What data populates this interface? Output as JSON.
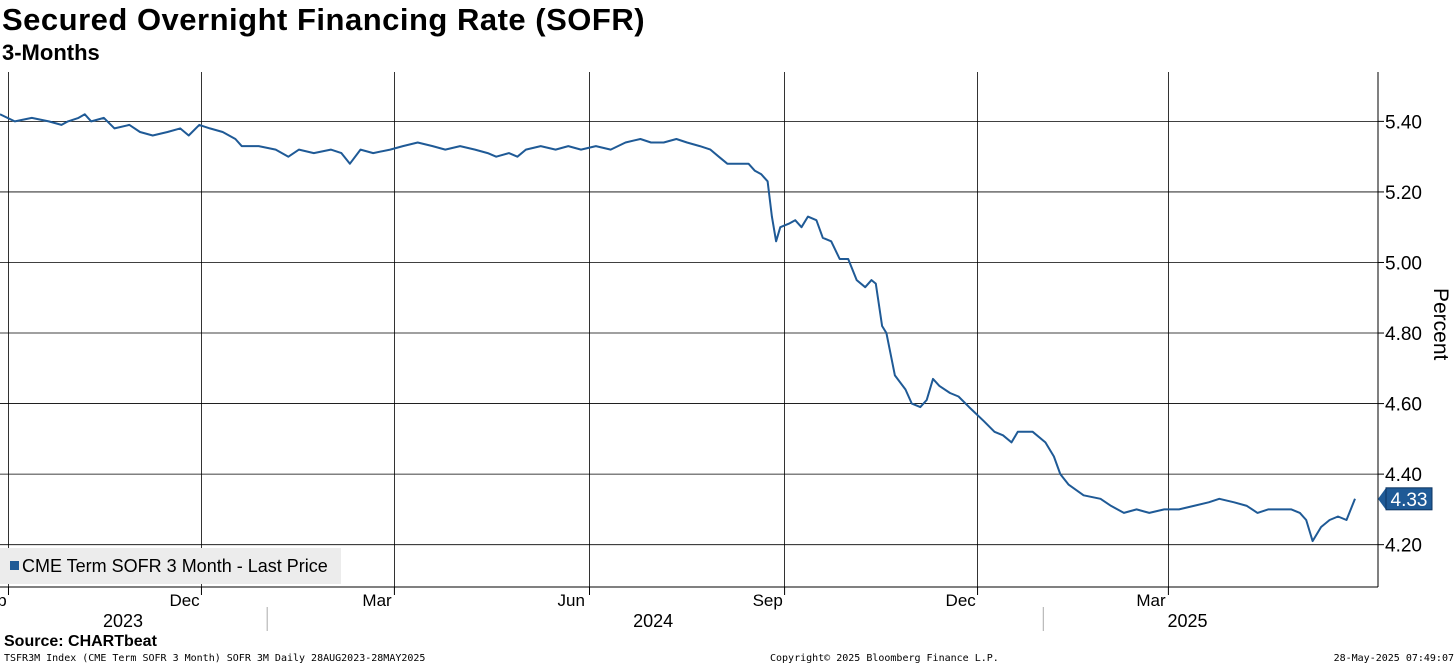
{
  "header": {
    "title": "Secured Overnight Financing Rate (SOFR)",
    "subtitle": "3-Months"
  },
  "footer": {
    "source": "Source: CHARTbeat",
    "index_info": "TSFR3M Index (CME Term SOFR 3 Month) SOFR 3M  Daily 28AUG2023-28MAY2025",
    "copyright": "Copyright© 2025 Bloomberg Finance L.P.",
    "timestamp": "28-May-2025 07:49:07"
  },
  "colors": {
    "line": "#1f5a96",
    "grid": "#000000",
    "last_badge_bg": "#1f5a96",
    "legend_bg": "#ececec"
  },
  "chart_data": {
    "type": "line",
    "title": "Secured Overnight Financing Rate (SOFR)",
    "subtitle": "3-Months",
    "ylabel": "Percent",
    "ylim": [
      4.08,
      5.54
    ],
    "y_ticks": [
      "5.40",
      "5.20",
      "5.00",
      "4.80",
      "4.60",
      "4.40",
      "4.20"
    ],
    "x_range": [
      "2023-08-28",
      "2025-05-28"
    ],
    "month_ticks": [
      {
        "label": "Sep",
        "date": "2023-09-01"
      },
      {
        "label": "Dec",
        "date": "2023-12-01"
      },
      {
        "label": "Mar",
        "date": "2024-03-01"
      },
      {
        "label": "Jun",
        "date": "2024-06-01"
      },
      {
        "label": "Sep",
        "date": "2024-09-01"
      },
      {
        "label": "Dec",
        "date": "2024-12-01"
      },
      {
        "label": "Mar",
        "date": "2025-03-01"
      }
    ],
    "year_labels": [
      {
        "label": "2023",
        "date": "2023-10-25"
      },
      {
        "label": "2024",
        "date": "2024-07-01"
      },
      {
        "label": "2025",
        "date": "2025-03-10"
      }
    ],
    "year_separators": [
      "2024-01-01",
      "2025-01-01"
    ],
    "grid": true,
    "legend": {
      "position": "bottom-left",
      "entries": [
        "CME Term SOFR 3 Month - Last Price"
      ]
    },
    "last_value_label": "4.33",
    "series": [
      {
        "name": "CME Term SOFR 3 Month - Last Price",
        "points": [
          [
            "2023-08-28",
            5.42
          ],
          [
            "2023-09-04",
            5.4
          ],
          [
            "2023-09-12",
            5.41
          ],
          [
            "2023-09-20",
            5.4
          ],
          [
            "2023-09-26",
            5.39
          ],
          [
            "2023-09-29",
            5.4
          ],
          [
            "2023-10-04",
            5.41
          ],
          [
            "2023-10-07",
            5.42
          ],
          [
            "2023-10-10",
            5.4
          ],
          [
            "2023-10-16",
            5.41
          ],
          [
            "2023-10-21",
            5.38
          ],
          [
            "2023-10-28",
            5.39
          ],
          [
            "2023-11-02",
            5.37
          ],
          [
            "2023-11-08",
            5.36
          ],
          [
            "2023-11-15",
            5.37
          ],
          [
            "2023-11-21",
            5.38
          ],
          [
            "2023-11-25",
            5.36
          ],
          [
            "2023-11-30",
            5.39
          ],
          [
            "2023-12-05",
            5.38
          ],
          [
            "2023-12-11",
            5.37
          ],
          [
            "2023-12-17",
            5.35
          ],
          [
            "2023-12-20",
            5.33
          ],
          [
            "2023-12-28",
            5.33
          ],
          [
            "2024-01-05",
            5.32
          ],
          [
            "2024-01-11",
            5.3
          ],
          [
            "2024-01-16",
            5.32
          ],
          [
            "2024-01-23",
            5.31
          ],
          [
            "2024-01-31",
            5.32
          ],
          [
            "2024-02-05",
            5.31
          ],
          [
            "2024-02-09",
            5.28
          ],
          [
            "2024-02-14",
            5.32
          ],
          [
            "2024-02-20",
            5.31
          ],
          [
            "2024-02-28",
            5.32
          ],
          [
            "2024-03-05",
            5.33
          ],
          [
            "2024-03-12",
            5.34
          ],
          [
            "2024-03-19",
            5.33
          ],
          [
            "2024-03-25",
            5.32
          ],
          [
            "2024-04-01",
            5.33
          ],
          [
            "2024-04-08",
            5.32
          ],
          [
            "2024-04-14",
            5.31
          ],
          [
            "2024-04-18",
            5.3
          ],
          [
            "2024-04-24",
            5.31
          ],
          [
            "2024-04-28",
            5.3
          ],
          [
            "2024-05-02",
            5.32
          ],
          [
            "2024-05-09",
            5.33
          ],
          [
            "2024-05-16",
            5.32
          ],
          [
            "2024-05-22",
            5.33
          ],
          [
            "2024-05-28",
            5.32
          ],
          [
            "2024-06-04",
            5.33
          ],
          [
            "2024-06-11",
            5.32
          ],
          [
            "2024-06-18",
            5.34
          ],
          [
            "2024-06-25",
            5.35
          ],
          [
            "2024-06-30",
            5.34
          ],
          [
            "2024-07-06",
            5.34
          ],
          [
            "2024-07-12",
            5.35
          ],
          [
            "2024-07-17",
            5.34
          ],
          [
            "2024-07-23",
            5.33
          ],
          [
            "2024-07-28",
            5.32
          ],
          [
            "2024-08-01",
            5.3
          ],
          [
            "2024-08-05",
            5.28
          ],
          [
            "2024-08-10",
            5.28
          ],
          [
            "2024-08-15",
            5.28
          ],
          [
            "2024-08-18",
            5.26
          ],
          [
            "2024-08-21",
            5.25
          ],
          [
            "2024-08-24",
            5.23
          ],
          [
            "2024-08-26",
            5.13
          ],
          [
            "2024-08-28",
            5.06
          ],
          [
            "2024-08-30",
            5.1
          ],
          [
            "2024-09-03",
            5.11
          ],
          [
            "2024-09-06",
            5.12
          ],
          [
            "2024-09-09",
            5.1
          ],
          [
            "2024-09-12",
            5.13
          ],
          [
            "2024-09-16",
            5.12
          ],
          [
            "2024-09-19",
            5.07
          ],
          [
            "2024-09-23",
            5.06
          ],
          [
            "2024-09-27",
            5.01
          ],
          [
            "2024-10-01",
            5.01
          ],
          [
            "2024-10-05",
            4.95
          ],
          [
            "2024-10-09",
            4.93
          ],
          [
            "2024-10-12",
            4.95
          ],
          [
            "2024-10-14",
            4.94
          ],
          [
            "2024-10-17",
            4.82
          ],
          [
            "2024-10-19",
            4.8
          ],
          [
            "2024-10-23",
            4.68
          ],
          [
            "2024-10-28",
            4.64
          ],
          [
            "2024-10-31",
            4.6
          ],
          [
            "2024-11-04",
            4.59
          ],
          [
            "2024-11-07",
            4.61
          ],
          [
            "2024-11-10",
            4.67
          ],
          [
            "2024-11-13",
            4.65
          ],
          [
            "2024-11-18",
            4.63
          ],
          [
            "2024-11-22",
            4.62
          ],
          [
            "2024-11-27",
            4.59
          ],
          [
            "2024-12-04",
            4.55
          ],
          [
            "2024-12-09",
            4.52
          ],
          [
            "2024-12-13",
            4.51
          ],
          [
            "2024-12-17",
            4.49
          ],
          [
            "2024-12-20",
            4.52
          ],
          [
            "2024-12-27",
            4.52
          ],
          [
            "2025-01-02",
            4.49
          ],
          [
            "2025-01-06",
            4.45
          ],
          [
            "2025-01-09",
            4.4
          ],
          [
            "2025-01-13",
            4.37
          ],
          [
            "2025-01-20",
            4.34
          ],
          [
            "2025-01-28",
            4.33
          ],
          [
            "2025-02-02",
            4.31
          ],
          [
            "2025-02-08",
            4.29
          ],
          [
            "2025-02-14",
            4.3
          ],
          [
            "2025-02-20",
            4.29
          ],
          [
            "2025-02-27",
            4.3
          ],
          [
            "2025-03-06",
            4.3
          ],
          [
            "2025-03-13",
            4.31
          ],
          [
            "2025-03-20",
            4.32
          ],
          [
            "2025-03-25",
            4.33
          ],
          [
            "2025-04-01",
            4.32
          ],
          [
            "2025-04-07",
            4.31
          ],
          [
            "2025-04-12",
            4.29
          ],
          [
            "2025-04-17",
            4.3
          ],
          [
            "2025-04-23",
            4.3
          ],
          [
            "2025-04-28",
            4.3
          ],
          [
            "2025-05-02",
            4.29
          ],
          [
            "2025-05-05",
            4.27
          ],
          [
            "2025-05-08",
            4.21
          ],
          [
            "2025-05-12",
            4.25
          ],
          [
            "2025-05-16",
            4.27
          ],
          [
            "2025-05-20",
            4.28
          ],
          [
            "2025-05-24",
            4.27
          ],
          [
            "2025-05-28",
            4.33
          ]
        ]
      }
    ]
  }
}
